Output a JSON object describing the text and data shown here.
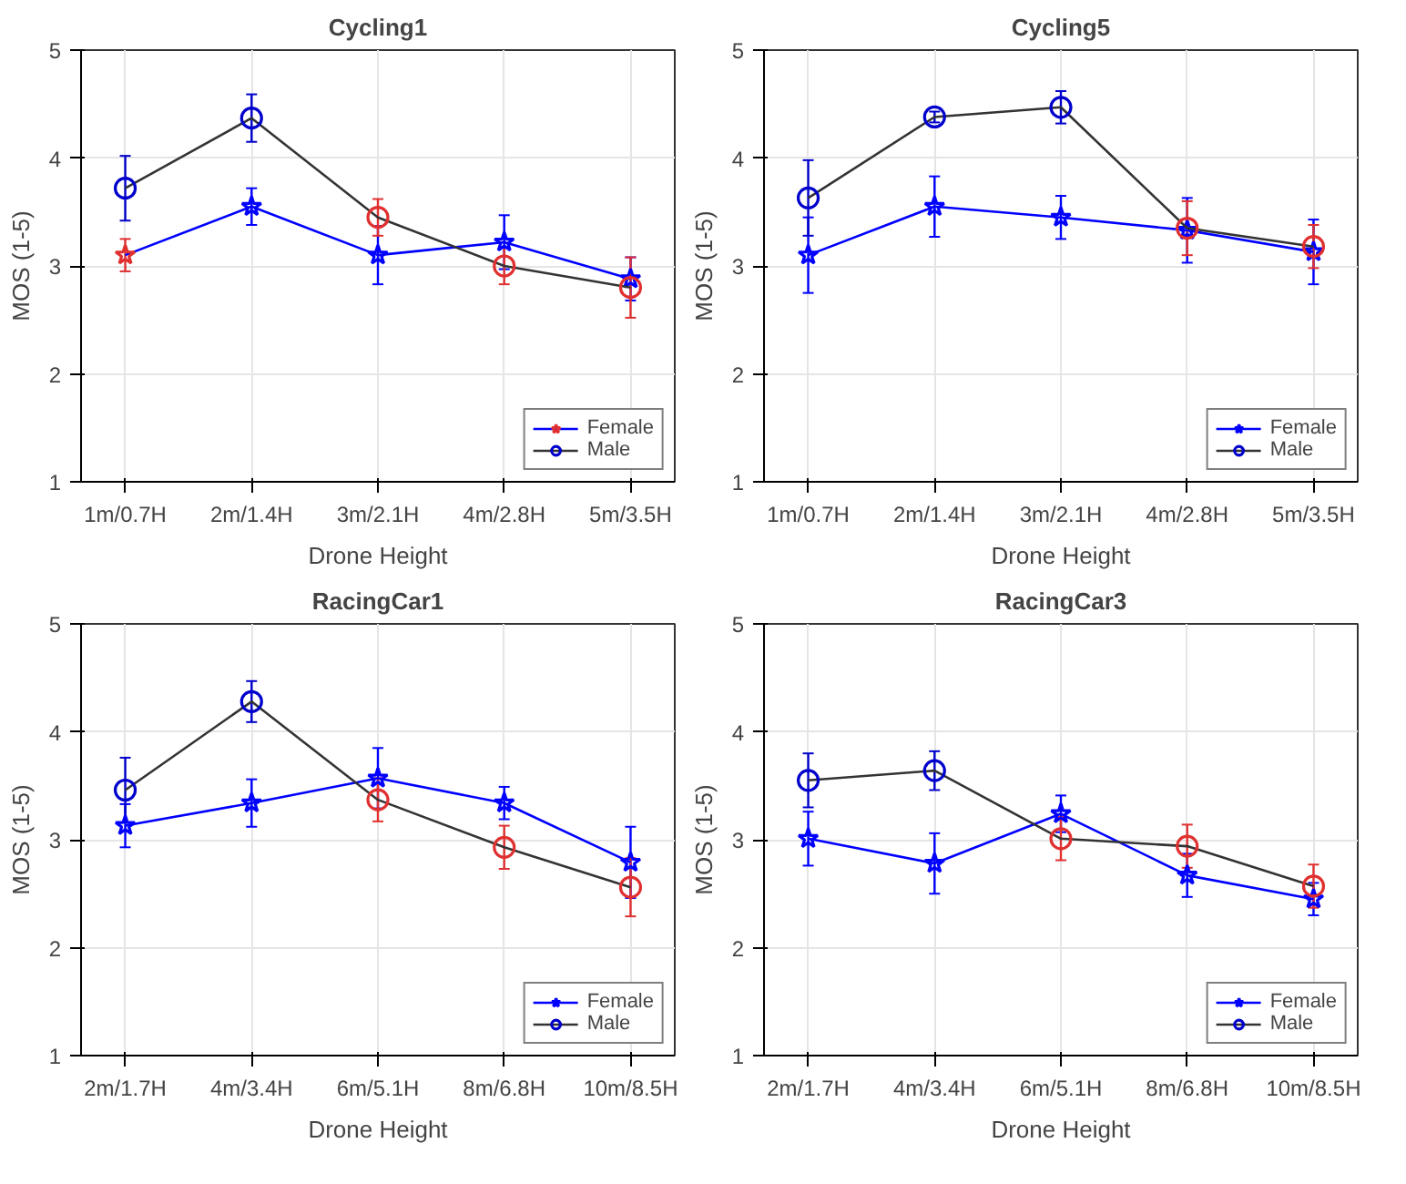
{
  "chart_data": [
    {
      "type": "line",
      "title": "Cycling1",
      "xlabel": "Drone Height",
      "ylabel": "MOS (1-5)",
      "categories": [
        "1m/0.7H",
        "2m/1.4H",
        "3m/2.1H",
        "4m/2.8H",
        "5m/3.5H"
      ],
      "ylim": [
        1,
        5
      ],
      "yticks": [
        1,
        2,
        3,
        4,
        5
      ],
      "grid": true,
      "legend": "bottom right",
      "series": [
        {
          "name": "Female",
          "color": "#0000ff",
          "marker": "star",
          "values": [
            3.1,
            3.55,
            3.1,
            3.22,
            2.88
          ],
          "errors": [
            0.15,
            0.17,
            0.27,
            0.25,
            0.2
          ],
          "colors": [
            "#e03030",
            "#0000ff",
            "#0000ff",
            "#0000ff",
            "#0000ff"
          ]
        },
        {
          "name": "Male",
          "color": "#333333",
          "marker": "circle",
          "values": [
            3.72,
            4.37,
            3.45,
            3.0,
            2.8
          ],
          "errors": [
            0.3,
            0.22,
            0.17,
            0.17,
            0.28
          ],
          "colors": [
            "#0000cc",
            "#0000cc",
            "#e03030",
            "#e03030",
            "#e03030"
          ]
        }
      ]
    },
    {
      "type": "line",
      "title": "Cycling5",
      "xlabel": "Drone Height",
      "ylabel": "MOS (1-5)",
      "categories": [
        "1m/0.7H",
        "2m/1.4H",
        "3m/2.1H",
        "4m/2.8H",
        "5m/3.5H"
      ],
      "ylim": [
        1,
        5
      ],
      "yticks": [
        1,
        2,
        3,
        4,
        5
      ],
      "grid": true,
      "legend": "bottom right",
      "series": [
        {
          "name": "Female",
          "color": "#0000ff",
          "marker": "star",
          "values": [
            3.1,
            3.55,
            3.45,
            3.33,
            3.13
          ],
          "errors": [
            0.35,
            0.28,
            0.2,
            0.3,
            0.3
          ],
          "colors": [
            "#0000ff",
            "#0000ff",
            "#0000ff",
            "#0000ff",
            "#0000ff"
          ]
        },
        {
          "name": "Male",
          "color": "#333333",
          "marker": "circle",
          "values": [
            3.63,
            4.38,
            4.47,
            3.35,
            3.18
          ],
          "errors": [
            0.35,
            0.05,
            0.15,
            0.25,
            0.2
          ],
          "colors": [
            "#0000cc",
            "#0000cc",
            "#0000cc",
            "#e03030",
            "#e03030"
          ]
        }
      ]
    },
    {
      "type": "line",
      "title": "RacingCar1",
      "xlabel": "Drone Height",
      "ylabel": "MOS (1-5)",
      "categories": [
        "2m/1.7H",
        "4m/3.4H",
        "6m/5.1H",
        "8m/6.8H",
        "10m/8.5H"
      ],
      "ylim": [
        1,
        5
      ],
      "yticks": [
        1,
        2,
        3,
        4,
        5
      ],
      "grid": true,
      "legend": "bottom right",
      "series": [
        {
          "name": "Female",
          "color": "#0000ff",
          "marker": "star",
          "values": [
            3.13,
            3.34,
            3.57,
            3.34,
            2.79
          ],
          "errors": [
            0.2,
            0.22,
            0.28,
            0.15,
            0.33
          ],
          "colors": [
            "#0000ff",
            "#0000ff",
            "#0000ff",
            "#0000ff",
            "#0000ff"
          ]
        },
        {
          "name": "Male",
          "color": "#333333",
          "marker": "circle",
          "values": [
            3.46,
            4.28,
            3.37,
            2.93,
            2.56
          ],
          "errors": [
            0.3,
            0.19,
            0.2,
            0.2,
            0.27
          ],
          "colors": [
            "#0000cc",
            "#0000cc",
            "#e03030",
            "#e03030",
            "#e03030"
          ]
        }
      ]
    },
    {
      "type": "line",
      "title": "RacingCar3",
      "xlabel": "Drone Height",
      "ylabel": "MOS (1-5)",
      "categories": [
        "2m/1.7H",
        "4m/3.4H",
        "6m/5.1H",
        "8m/6.8H",
        "10m/8.5H"
      ],
      "ylim": [
        1,
        5
      ],
      "yticks": [
        1,
        2,
        3,
        4,
        5
      ],
      "grid": true,
      "legend": "bottom right",
      "series": [
        {
          "name": "Female",
          "color": "#0000ff",
          "marker": "star",
          "values": [
            3.01,
            2.78,
            3.24,
            2.67,
            2.45
          ],
          "errors": [
            0.25,
            0.28,
            0.17,
            0.2,
            0.15
          ],
          "colors": [
            "#0000ff",
            "#0000ff",
            "#0000ff",
            "#0000ff",
            "#0000ff"
          ]
        },
        {
          "name": "Male",
          "color": "#333333",
          "marker": "circle",
          "values": [
            3.55,
            3.64,
            3.01,
            2.94,
            2.57
          ],
          "errors": [
            0.25,
            0.18,
            0.2,
            0.2,
            0.2
          ],
          "colors": [
            "#0000cc",
            "#0000cc",
            "#e03030",
            "#e03030",
            "#e03030"
          ]
        }
      ]
    }
  ]
}
